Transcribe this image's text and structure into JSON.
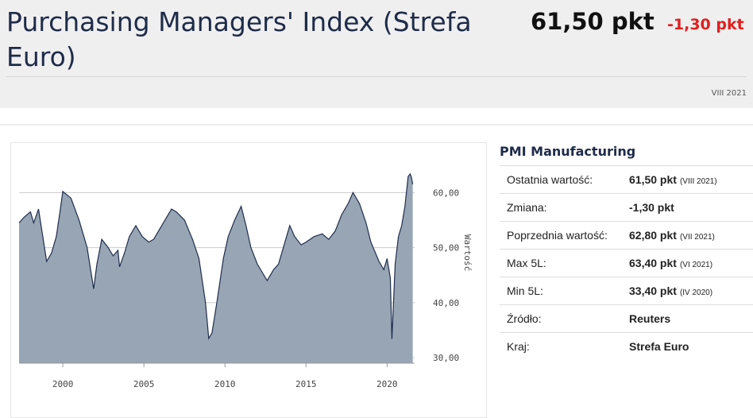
{
  "header": {
    "title": "Purchasing Managers' Index (Strefa Euro)",
    "value": "61,50 pkt",
    "change": "-1,30 pkt",
    "date": "VIII 2021"
  },
  "chart_data": {
    "type": "area",
    "y_label": "Wartość",
    "color": "#98a5b4",
    "line_color": "#1f2d4e",
    "x": [
      1997.3,
      1997.6,
      1998.0,
      1998.2,
      1998.5,
      1999.0,
      1999.3,
      1999.6,
      1999.8,
      2000.0,
      2000.5,
      2001.0,
      2001.5,
      2001.9,
      2002.1,
      2002.4,
      2002.8,
      2003.1,
      2003.4,
      2003.5,
      2003.8,
      2004.1,
      2004.5,
      2004.9,
      2005.3,
      2005.6,
      2005.9,
      2006.3,
      2006.7,
      2007.0,
      2007.5,
      2008.0,
      2008.4,
      2008.8,
      2009.0,
      2009.2,
      2009.5,
      2009.9,
      2010.2,
      2010.6,
      2011.0,
      2011.3,
      2011.6,
      2012.0,
      2012.4,
      2012.6,
      2013.0,
      2013.3,
      2013.6,
      2014.0,
      2014.3,
      2014.7,
      2015.0,
      2015.5,
      2016.0,
      2016.4,
      2016.8,
      2017.2,
      2017.6,
      2017.9,
      2018.3,
      2018.7,
      2019.0,
      2019.5,
      2019.8,
      2020.0,
      2020.2,
      2020.3,
      2020.5,
      2020.7,
      2020.9,
      2021.1,
      2021.3,
      2021.42,
      2021.5,
      2021.58
    ],
    "values": [
      54.5,
      55.5,
      56.5,
      54.5,
      57,
      47.5,
      49,
      52,
      56,
      60.2,
      59,
      55,
      50,
      42.5,
      47,
      51.5,
      50,
      48.5,
      49.5,
      46.5,
      49,
      52,
      54,
      52,
      51,
      51.5,
      53,
      55,
      57,
      56.5,
      55,
      51.5,
      48,
      40,
      33.5,
      34.5,
      40,
      48,
      52,
      55,
      57.5,
      54,
      50,
      47,
      45,
      44,
      46,
      47,
      50,
      54,
      52,
      50.5,
      51,
      52,
      52.5,
      51.5,
      53,
      56,
      58,
      60,
      58,
      54.5,
      51,
      47.5,
      46,
      48,
      44.5,
      33.4,
      47,
      52,
      54,
      57.5,
      62.9,
      63.4,
      62.8,
      61.5
    ],
    "xlim": [
      1997.3,
      2021.7
    ],
    "ylim": [
      29,
      69
    ],
    "xticks": [
      2000,
      2005,
      2010,
      2015,
      2020
    ],
    "yticks": [
      {
        "value": 30,
        "label": "30,00"
      },
      {
        "value": 40,
        "label": "40,00"
      },
      {
        "value": 50,
        "label": "50,00"
      },
      {
        "value": 60,
        "label": "60,00"
      }
    ],
    "grid": true
  },
  "table": {
    "title": "PMI Manufacturing",
    "rows": [
      {
        "label": "Ostatnia wartość:",
        "value": "61,50 pkt",
        "note": "(VIII 2021)"
      },
      {
        "label": "Zmiana:",
        "value": "-1,30 pkt"
      },
      {
        "label": "Poprzednia wartość:",
        "value": "62,80 pkt",
        "note": "(VII 2021)"
      },
      {
        "label": "Max 5L:",
        "value": "63,40 pkt",
        "note": "(VI 2021)"
      },
      {
        "label": "Min 5L:",
        "value": "33,40 pkt",
        "note": "(IV 2020)"
      },
      {
        "label": "Źródło:",
        "value": "Reuters"
      },
      {
        "label": "Kraj:",
        "value": "Strefa Euro"
      }
    ]
  }
}
